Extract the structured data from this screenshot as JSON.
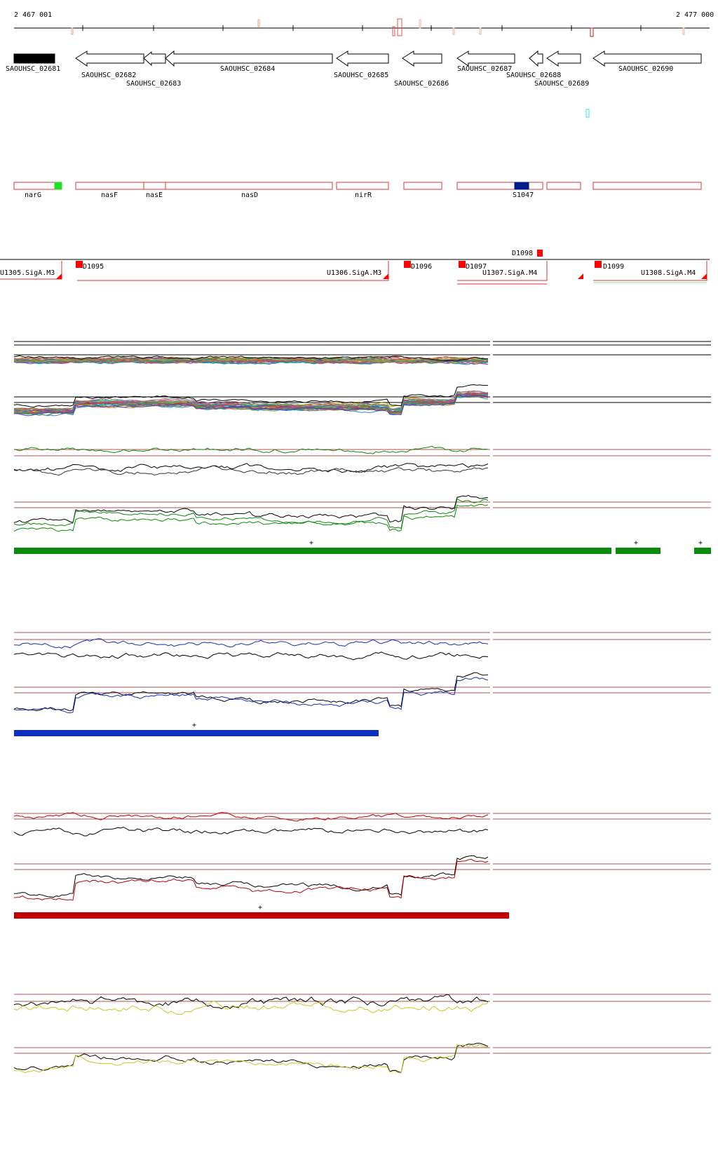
{
  "ruler": {
    "start_label": "2 467 001",
    "end_label": "2 477 000"
  },
  "genes": [
    {
      "label": "SAOUHSC_02681"
    },
    {
      "label": "SAOUHSC_02682"
    },
    {
      "label": "SAOUHSC_02683"
    },
    {
      "label": "SAOUHSC_02684"
    },
    {
      "label": "SAOUHSC_02685"
    },
    {
      "label": "SAOUHSC_02686"
    },
    {
      "label": "SAOUHSC_02687"
    },
    {
      "label": "SAOUHSC_02688"
    },
    {
      "label": "SAOUHSC_02689"
    },
    {
      "label": "SAOUHSC_02690"
    }
  ],
  "gene_names": [
    {
      "label": "narG"
    },
    {
      "label": "nasF"
    },
    {
      "label": "nasE"
    },
    {
      "label": "nasD"
    },
    {
      "label": "nirR"
    },
    {
      "label": "S1047"
    }
  ],
  "segments": [
    {
      "label": "U1305.SigA.M3"
    },
    {
      "label": "D1095"
    },
    {
      "label": "U1306.SigA.M3"
    },
    {
      "label": "D1096"
    },
    {
      "label": "D1097"
    },
    {
      "label": "U1307.SigA.M4"
    },
    {
      "label": "D1098"
    },
    {
      "label": "D1099"
    },
    {
      "label": "U1308.SigA.M4"
    }
  ],
  "colors": {
    "gene_outline": "#000000",
    "region_outline": "#e53030",
    "segment_red": "#ff0000",
    "green_track": "#0a8a0a",
    "blue_track": "#1030c0",
    "red_track": "#c00000",
    "yellow_track": "#c8c820"
  },
  "markers": {
    "plus": "+"
  }
}
